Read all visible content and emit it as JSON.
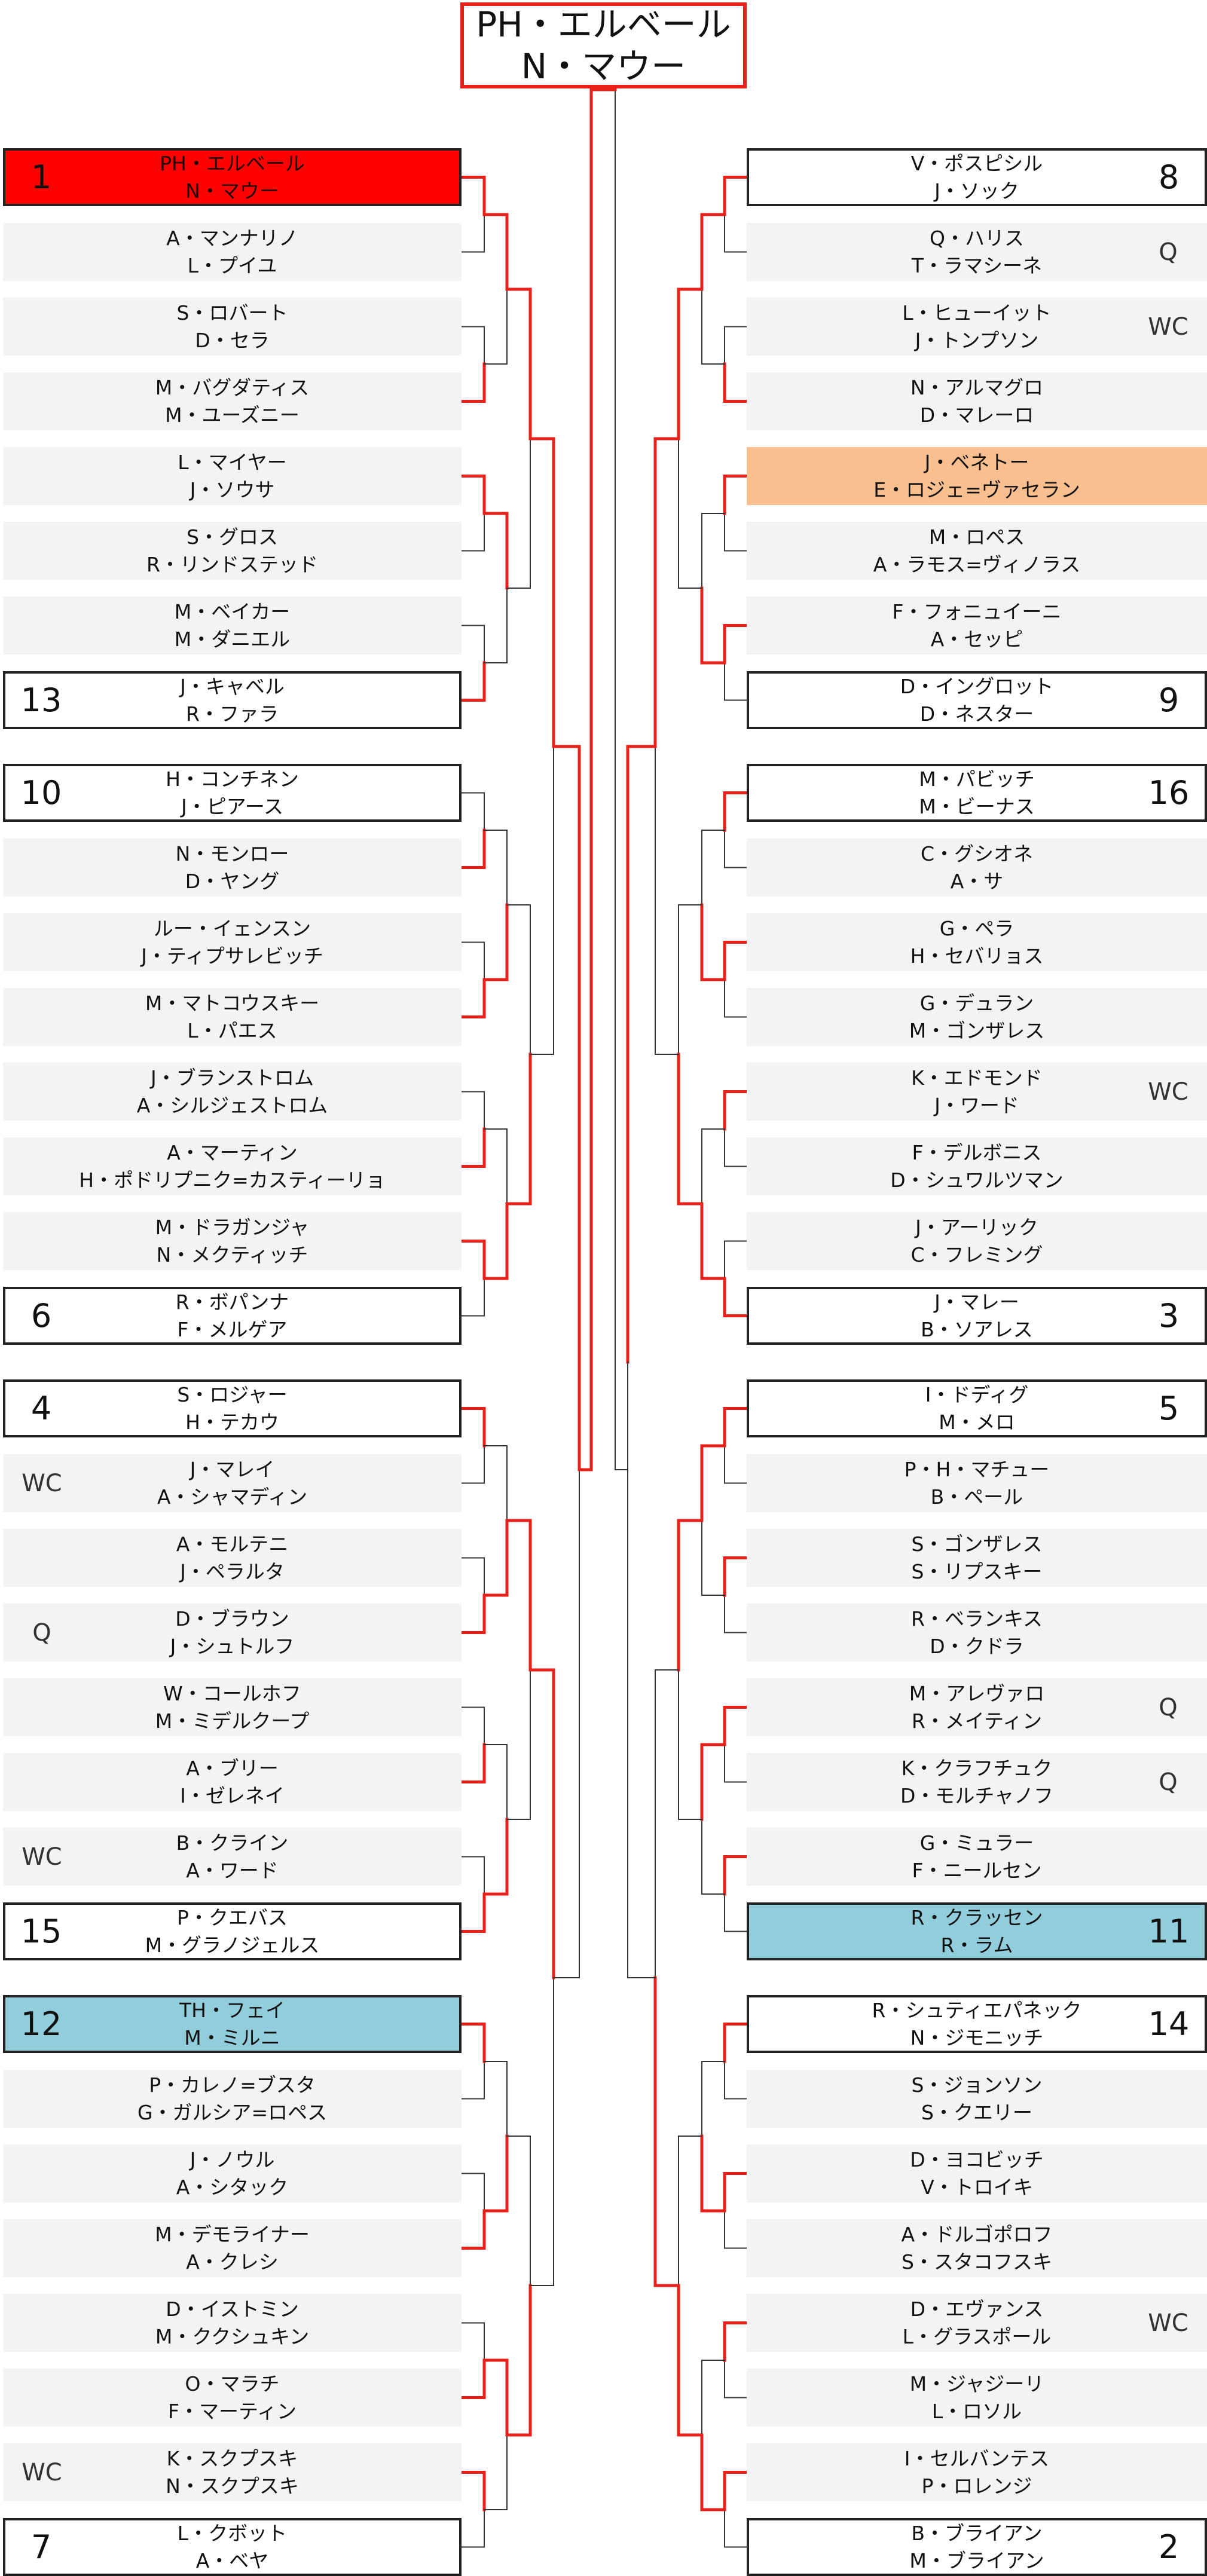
{
  "champion": {
    "line1": "PH・エルベール",
    "line2": "N・マウー"
  },
  "colors": {
    "win": "#e8211a",
    "line": "#333333",
    "seed1": "#ff0000",
    "highlight_orange": "#f9bf8f",
    "highlight_blue": "#92cddc",
    "shade": "#f3f3f3"
  },
  "left": [
    {
      "p1": "PH・エルベール",
      "p2": "N・マウー",
      "seed": "1",
      "tag": "",
      "fill": "red"
    },
    {
      "p1": "A・マンナリノ",
      "p2": "L・プイユ",
      "seed": "",
      "tag": "",
      "fill": ""
    },
    {
      "p1": "S・ロバート",
      "p2": "D・セラ",
      "seed": "",
      "tag": "",
      "fill": ""
    },
    {
      "p1": "M・バグダティス",
      "p2": "M・ユーズニー",
      "seed": "",
      "tag": "",
      "fill": ""
    },
    {
      "p1": "L・マイヤー",
      "p2": "J・ソウサ",
      "seed": "",
      "tag": "",
      "fill": ""
    },
    {
      "p1": "S・グロス",
      "p2": "R・リンドステッド",
      "seed": "",
      "tag": "",
      "fill": ""
    },
    {
      "p1": "M・ベイカー",
      "p2": "M・ダニエル",
      "seed": "",
      "tag": "",
      "fill": ""
    },
    {
      "p1": "J・キャベル",
      "p2": "R・ファラ",
      "seed": "13",
      "tag": "",
      "fill": ""
    },
    {
      "p1": "H・コンチネン",
      "p2": "J・ピアース",
      "seed": "10",
      "tag": "",
      "fill": ""
    },
    {
      "p1": "N・モンロー",
      "p2": "D・ヤング",
      "seed": "",
      "tag": "",
      "fill": ""
    },
    {
      "p1": "ルー・イェンスン",
      "p2": "J・ティプサレビッチ",
      "seed": "",
      "tag": "",
      "fill": ""
    },
    {
      "p1": "M・マトコウスキー",
      "p2": "L・パエス",
      "seed": "",
      "tag": "",
      "fill": ""
    },
    {
      "p1": "J・ブランストロム",
      "p2": "A・シルジェストロム",
      "seed": "",
      "tag": "",
      "fill": ""
    },
    {
      "p1": "A・マーティン",
      "p2": "H・ポドリプニク=カスティーリョ",
      "seed": "",
      "tag": "",
      "fill": ""
    },
    {
      "p1": "M・ドラガンジャ",
      "p2": "N・メクティッチ",
      "seed": "",
      "tag": "",
      "fill": ""
    },
    {
      "p1": "R・ボパンナ",
      "p2": "F・メルゲア",
      "seed": "6",
      "tag": "",
      "fill": ""
    },
    {
      "p1": "S・ロジャー",
      "p2": "H・テカウ",
      "seed": "4",
      "tag": "",
      "fill": ""
    },
    {
      "p1": "J・マレイ",
      "p2": "A・シャマディン",
      "seed": "",
      "tag": "WC",
      "fill": ""
    },
    {
      "p1": "A・モルテニ",
      "p2": "J・ペラルタ",
      "seed": "",
      "tag": "",
      "fill": ""
    },
    {
      "p1": "D・ブラウン",
      "p2": "J・シュトルフ",
      "seed": "",
      "tag": "Q",
      "fill": ""
    },
    {
      "p1": "W・コールホフ",
      "p2": "M・ミデルクープ",
      "seed": "",
      "tag": "",
      "fill": ""
    },
    {
      "p1": "A・ブリー",
      "p2": "I・ゼレネイ",
      "seed": "",
      "tag": "",
      "fill": ""
    },
    {
      "p1": "B・クライン",
      "p2": "A・ワード",
      "seed": "",
      "tag": "WC",
      "fill": ""
    },
    {
      "p1": "P・クエバス",
      "p2": "M・グラノジェルス",
      "seed": "15",
      "tag": "",
      "fill": ""
    },
    {
      "p1": "TH・フェイ",
      "p2": "M・ミルニ",
      "seed": "12",
      "tag": "",
      "fill": "blue"
    },
    {
      "p1": "P・カレノ=ブスタ",
      "p2": "G・ガルシア=ロペス",
      "seed": "",
      "tag": "",
      "fill": ""
    },
    {
      "p1": "J・ノウル",
      "p2": "A・シタック",
      "seed": "",
      "tag": "",
      "fill": ""
    },
    {
      "p1": "M・デモライナー",
      "p2": "A・クレシ",
      "seed": "",
      "tag": "",
      "fill": ""
    },
    {
      "p1": "D・イストミン",
      "p2": "M・ククシュキン",
      "seed": "",
      "tag": "",
      "fill": ""
    },
    {
      "p1": "O・マラチ",
      "p2": "F・マーティン",
      "seed": "",
      "tag": "",
      "fill": ""
    },
    {
      "p1": "K・スクプスキ",
      "p2": "N・スクプスキ",
      "seed": "",
      "tag": "WC",
      "fill": ""
    },
    {
      "p1": "L・クボット",
      "p2": "A・ベヤ",
      "seed": "7",
      "tag": "",
      "fill": ""
    }
  ],
  "right": [
    {
      "p1": "V・ポスピシル",
      "p2": "J・ソック",
      "seed": "8",
      "tag": "",
      "fill": ""
    },
    {
      "p1": "Q・ハリス",
      "p2": "T・ラマシーネ",
      "seed": "",
      "tag": "Q",
      "fill": ""
    },
    {
      "p1": "L・ヒューイット",
      "p2": "J・トンプソン",
      "seed": "",
      "tag": "WC",
      "fill": ""
    },
    {
      "p1": "N・アルマグロ",
      "p2": "D・マレーロ",
      "seed": "",
      "tag": "",
      "fill": ""
    },
    {
      "p1": "J・ベネトー",
      "p2": "E・ロジェ=ヴァセラン",
      "seed": "",
      "tag": "",
      "fill": "orange"
    },
    {
      "p1": "M・ロペス",
      "p2": "A・ラモス=ヴィノラス",
      "seed": "",
      "tag": "",
      "fill": ""
    },
    {
      "p1": "F・フォニュイーニ",
      "p2": "A・セッピ",
      "seed": "",
      "tag": "",
      "fill": ""
    },
    {
      "p1": "D・イングロット",
      "p2": "D・ネスター",
      "seed": "9",
      "tag": "",
      "fill": ""
    },
    {
      "p1": "M・パビッチ",
      "p2": "M・ビーナス",
      "seed": "16",
      "tag": "",
      "fill": ""
    },
    {
      "p1": "C・グシオネ",
      "p2": "A・サ",
      "seed": "",
      "tag": "",
      "fill": ""
    },
    {
      "p1": "G・ペラ",
      "p2": "H・セバリョス",
      "seed": "",
      "tag": "",
      "fill": ""
    },
    {
      "p1": "G・デュラン",
      "p2": "M・ゴンザレス",
      "seed": "",
      "tag": "",
      "fill": ""
    },
    {
      "p1": "K・エドモンド",
      "p2": "J・ワード",
      "seed": "",
      "tag": "WC",
      "fill": ""
    },
    {
      "p1": "F・デルボニス",
      "p2": "D・シュワルツマン",
      "seed": "",
      "tag": "",
      "fill": ""
    },
    {
      "p1": "J・アーリック",
      "p2": "C・フレミング",
      "seed": "",
      "tag": "",
      "fill": ""
    },
    {
      "p1": "J・マレー",
      "p2": "B・ソアレス",
      "seed": "3",
      "tag": "",
      "fill": ""
    },
    {
      "p1": "I・ドディグ",
      "p2": "M・メロ",
      "seed": "5",
      "tag": "",
      "fill": ""
    },
    {
      "p1": "P・H・マチュー",
      "p2": "B・ペール",
      "seed": "",
      "tag": "",
      "fill": ""
    },
    {
      "p1": "S・ゴンザレス",
      "p2": "S・リプスキー",
      "seed": "",
      "tag": "",
      "fill": ""
    },
    {
      "p1": "R・ベランキス",
      "p2": "D・クドラ",
      "seed": "",
      "tag": "",
      "fill": ""
    },
    {
      "p1": "M・アレヴァロ",
      "p2": "R・メイティン",
      "seed": "",
      "tag": "Q",
      "fill": ""
    },
    {
      "p1": "K・クラフチュク",
      "p2": "D・モルチャノフ",
      "seed": "",
      "tag": "Q",
      "fill": ""
    },
    {
      "p1": "G・ミュラー",
      "p2": "F・ニールセン",
      "seed": "",
      "tag": "",
      "fill": ""
    },
    {
      "p1": "R・クラッセン",
      "p2": "R・ラム",
      "seed": "11",
      "tag": "",
      "fill": "blue"
    },
    {
      "p1": "R・シュティエパネック",
      "p2": "N・ジモニッチ",
      "seed": "14",
      "tag": "",
      "fill": ""
    },
    {
      "p1": "S・ジョンソン",
      "p2": "S・クエリー",
      "seed": "",
      "tag": "",
      "fill": ""
    },
    {
      "p1": "D・ヨコビッチ",
      "p2": "V・トロイキ",
      "seed": "",
      "tag": "",
      "fill": ""
    },
    {
      "p1": "A・ドルゴポロフ",
      "p2": "S・スタコフスキ",
      "seed": "",
      "tag": "",
      "fill": ""
    },
    {
      "p1": "D・エヴァンス",
      "p2": "L・グラスポール",
      "seed": "",
      "tag": "WC",
      "fill": ""
    },
    {
      "p1": "M・ジャジーリ",
      "p2": "L・ロソル",
      "seed": "",
      "tag": "",
      "fill": ""
    },
    {
      "p1": "I・セルバンテス",
      "p2": "P・ロレンジ",
      "seed": "",
      "tag": "",
      "fill": ""
    },
    {
      "p1": "B・ブライアン",
      "p2": "M・ブライアン",
      "seed": "2",
      "tag": "",
      "fill": ""
    }
  ],
  "left_winners": [
    [
      0,
      1,
      0,
      1,
      1,
      1,
      1,
      0,
      0,
      1,
      1,
      1,
      0,
      1,
      1,
      0
    ],
    [
      0,
      0,
      1,
      1,
      1,
      1,
      1,
      0
    ],
    [
      0,
      1,
      0,
      1
    ],
    [
      0,
      0
    ],
    [
      0
    ]
  ],
  "right_winners": [
    [
      0,
      1,
      0,
      0,
      0,
      0,
      0,
      1,
      0,
      0,
      0,
      0,
      0,
      0,
      0,
      0
    ],
    [
      0,
      1,
      1,
      1,
      0,
      0,
      1,
      1
    ],
    [
      0,
      1,
      0,
      1
    ],
    [
      0,
      1
    ],
    [
      0
    ]
  ],
  "final_winner": "left"
}
